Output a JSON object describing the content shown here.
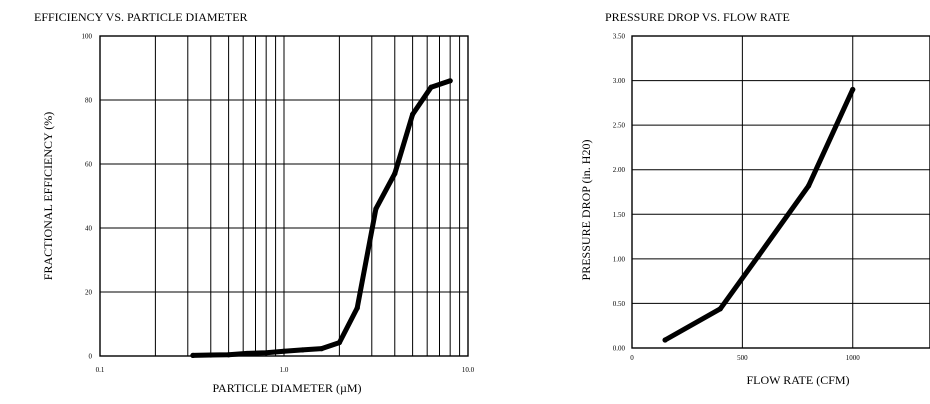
{
  "chart_data": [
    {
      "type": "line",
      "title": "EFFICIENCY VS. PARTICLE DIAMETER",
      "xlabel": "PARTICLE DIAMETER (µM)",
      "ylabel": "FRACTIONAL EFFICIENCY (%)",
      "xscale": "log",
      "xlim": [
        0.1,
        10.0
      ],
      "ylim": [
        0,
        100
      ],
      "xticks": [
        "0.1",
        "1.0",
        "10.0"
      ],
      "yticks": [
        "0",
        "20",
        "40",
        "60",
        "80",
        "100"
      ],
      "grid": true,
      "series": [
        {
          "x": [
            0.32,
            0.4,
            0.5,
            0.63,
            0.8,
            1.0,
            1.26,
            1.6,
            2.0,
            2.5,
            3.16,
            4.0,
            5.0,
            6.3,
            8.0
          ],
          "y": [
            0.2,
            0.3,
            0.4,
            0.8,
            1.0,
            1.5,
            1.9,
            2.3,
            4.2,
            15.0,
            46.0,
            57.0,
            75.5,
            84.0,
            86.0
          ]
        }
      ]
    },
    {
      "type": "line",
      "title": "PRESSURE DROP VS. FLOW RATE",
      "xlabel": "FLOW RATE (CFM)",
      "ylabel": "PRESSURE DROP (in. H20)",
      "xlim": [
        0,
        1350
      ],
      "ylim": [
        0,
        3.5
      ],
      "xticks": [
        "0",
        "500",
        "1000"
      ],
      "yticks": [
        "0.00",
        "0.50",
        "1.00",
        "1.50",
        "2.00",
        "2.50",
        "3.00",
        "3.50"
      ],
      "grid": true,
      "series": [
        {
          "x": [
            150,
            400,
            575,
            800,
            1000
          ],
          "y": [
            0.09,
            0.44,
            1.04,
            1.82,
            2.9
          ]
        }
      ]
    }
  ]
}
